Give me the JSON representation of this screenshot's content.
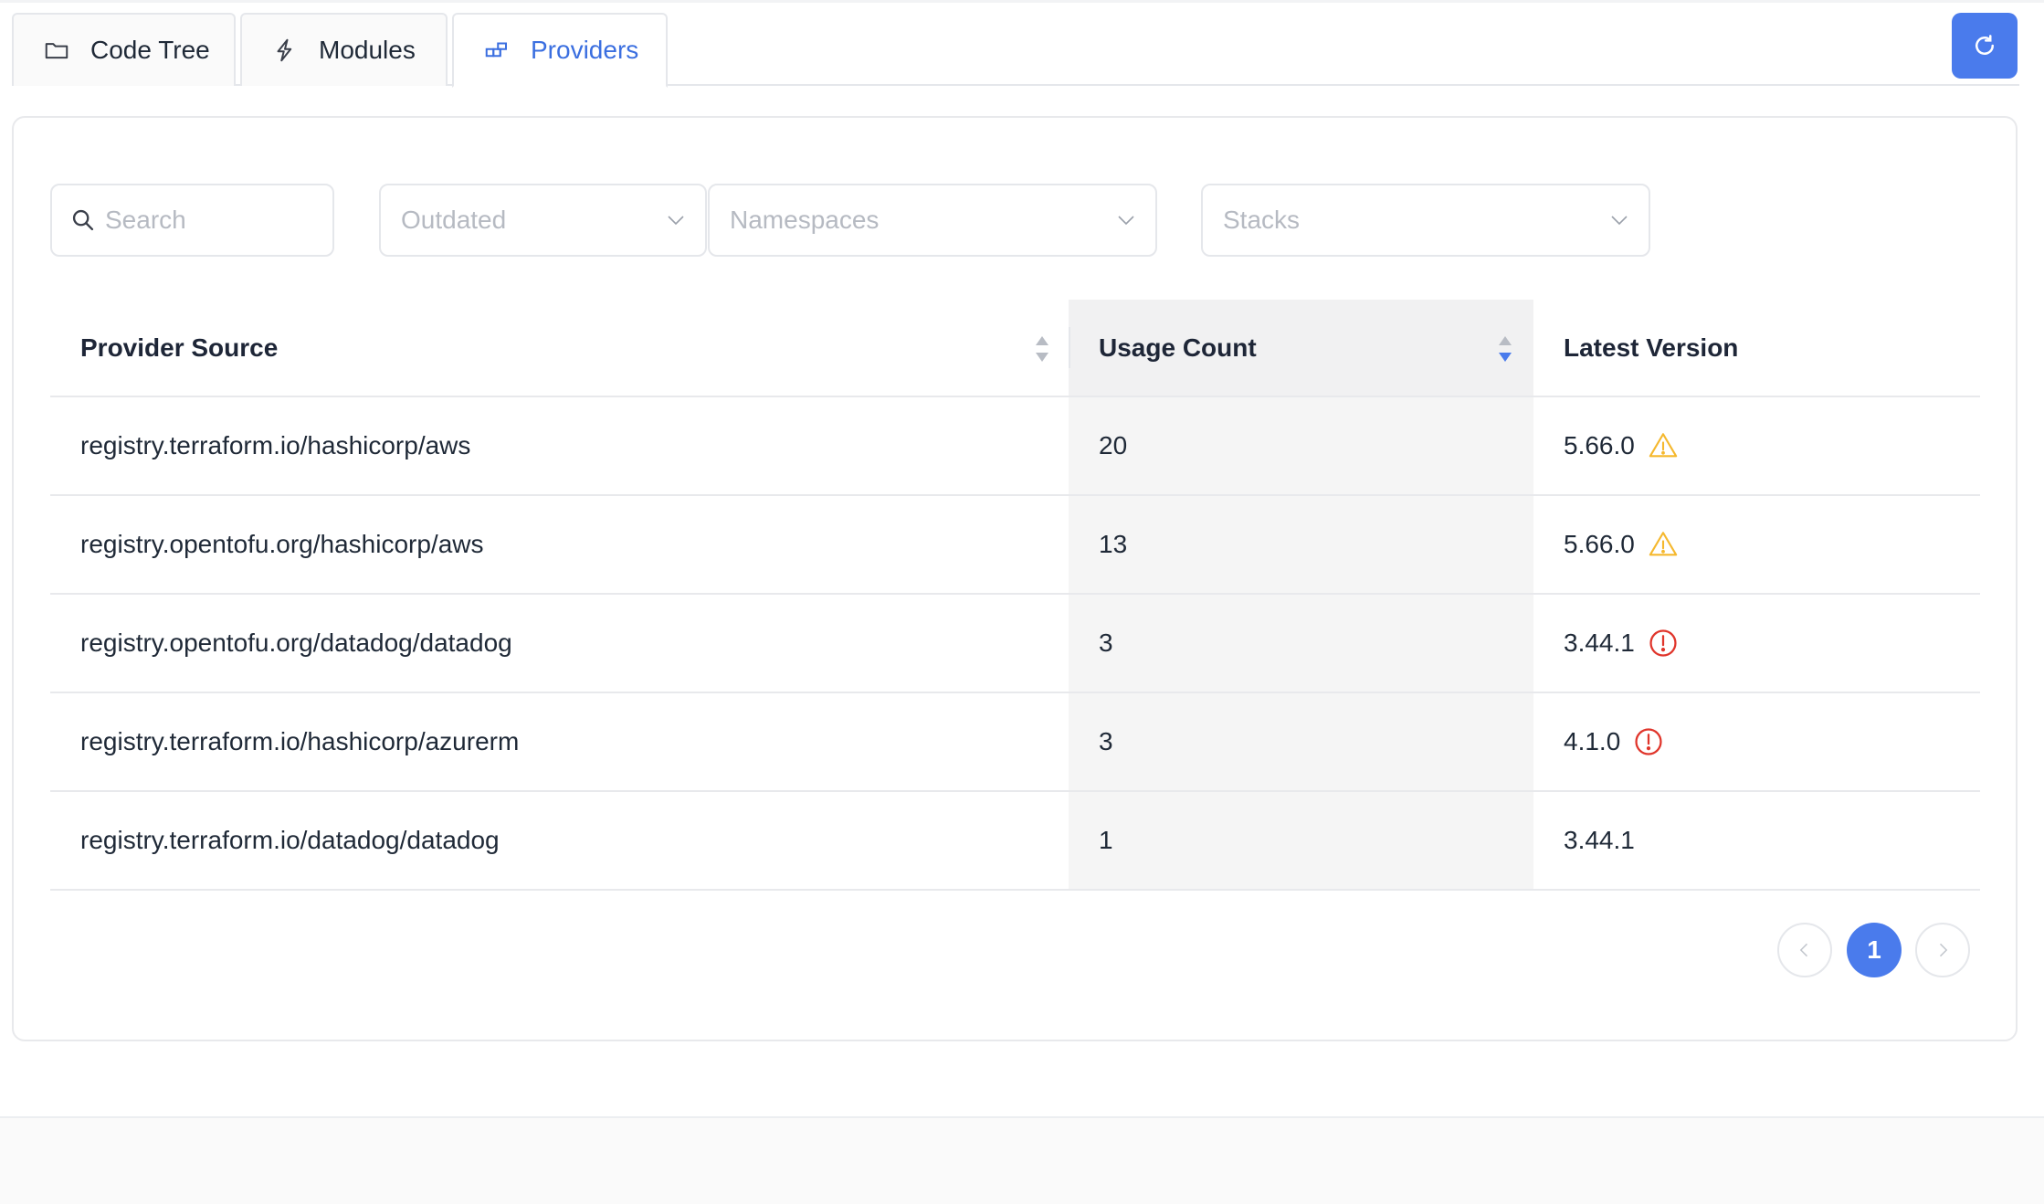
{
  "tabs": [
    {
      "label": "Code Tree",
      "icon": "folder-icon",
      "active": false
    },
    {
      "label": "Modules",
      "icon": "lightning-icon",
      "active": false
    },
    {
      "label": "Providers",
      "icon": "blocks-icon",
      "active": true
    }
  ],
  "toolbar": {
    "refresh_icon": "refresh-icon"
  },
  "filters": {
    "search_placeholder": "Search",
    "outdated_placeholder": "Outdated",
    "namespaces_placeholder": "Namespaces",
    "stacks_placeholder": "Stacks"
  },
  "table": {
    "columns": [
      "Provider Source",
      "Usage Count",
      "Latest Version"
    ],
    "sorted_column": "Usage Count",
    "sort_direction": "descending",
    "rows": [
      {
        "source": "registry.terraform.io/hashicorp/aws",
        "count": "20",
        "version": "5.66.0",
        "status": "warning"
      },
      {
        "source": "registry.opentofu.org/hashicorp/aws",
        "count": "13",
        "version": "5.66.0",
        "status": "warning"
      },
      {
        "source": "registry.opentofu.org/datadog/datadog",
        "count": "3",
        "version": "3.44.1",
        "status": "error"
      },
      {
        "source": "registry.terraform.io/hashicorp/azurerm",
        "count": "3",
        "version": "4.1.0",
        "status": "error"
      },
      {
        "source": "registry.terraform.io/datadog/datadog",
        "count": "1",
        "version": "3.44.1",
        "status": "none"
      }
    ]
  },
  "pagination": {
    "current_page": "1"
  },
  "colors": {
    "accent": "#4a7bec",
    "warning": "#f5b82e",
    "error": "#e0352b"
  }
}
